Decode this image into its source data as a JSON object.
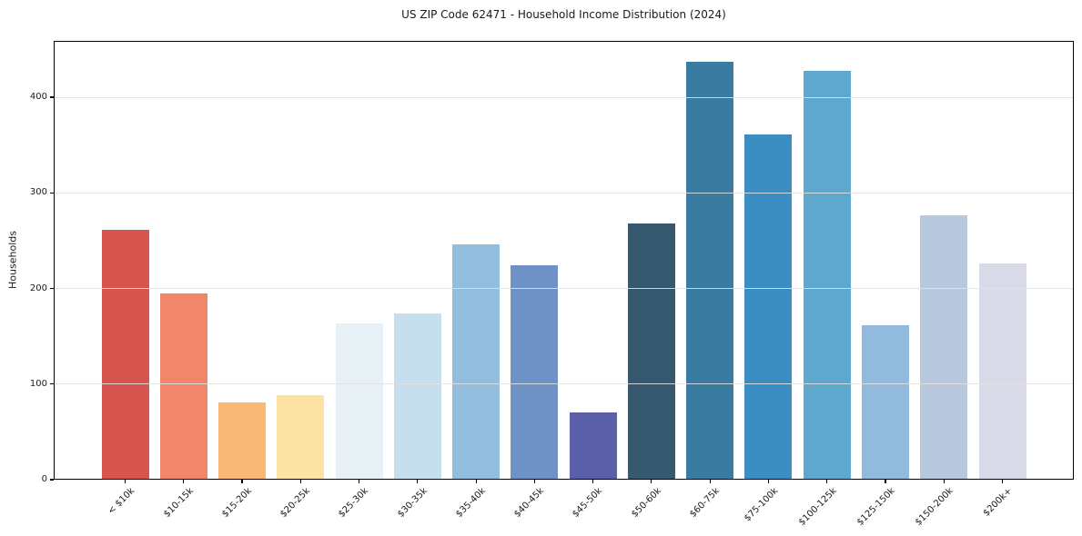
{
  "figure": {
    "background": "#ffffff",
    "text_color": "#1a1a1a",
    "frame_color": "#000000",
    "grid_color": "#e2e2e2"
  },
  "chart_data": {
    "type": "bar",
    "title": "US ZIP Code 62471 - Household Income Distribution (2024)",
    "xlabel": "",
    "ylabel": "Households",
    "legend": "none",
    "grid": "horizontal gridlines, light gray, drawn over bars",
    "categories": [
      "< $10k",
      "$10-15k",
      "$15-20k",
      "$20-25k",
      "$25-30k",
      "$30-35k",
      "$35-40k",
      "$40-45k",
      "$45-50k",
      "$50-60k",
      "$60-75k",
      "$75-100k",
      "$100-125k",
      "$125-150k",
      "$150-200k",
      "$200k+"
    ],
    "values": [
      261,
      195,
      81,
      88,
      163,
      174,
      246,
      224,
      70,
      268,
      437,
      361,
      428,
      162,
      277,
      226
    ],
    "bar_colors": [
      "#d6554f",
      "#f1876a",
      "#fab877",
      "#fce3a3",
      "#e7f1f6",
      "#c5dfee",
      "#93bddc",
      "#6e92c5",
      "#5b5ea9",
      "#36596f",
      "#3a7ba1",
      "#3b8dc2",
      "#5fa8cd",
      "#92badc",
      "#b8c9de",
      "#d8dae7"
    ],
    "yticks": [
      0,
      100,
      200,
      300,
      400
    ],
    "ylim": [
      0,
      459
    ]
  }
}
